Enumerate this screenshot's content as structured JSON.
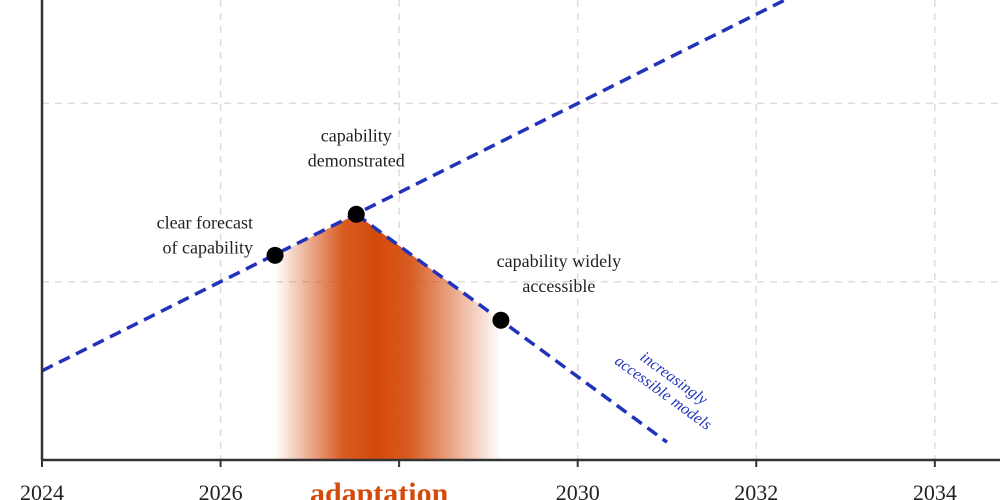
{
  "chart_data": {
    "type": "line",
    "xlim": [
      2024,
      2034.73
    ],
    "xticks": [
      2024,
      2026,
      2028,
      2030,
      2032,
      2034
    ],
    "ylim": [
      0,
      2.58
    ],
    "yticks": [
      1,
      2
    ],
    "grid": true,
    "series": [
      {
        "color": "#2233bb",
        "x": [
          2024,
          2032.32
        ],
        "values": [
          0.5,
          2.58
        ]
      },
      {
        "color": "#2233bb",
        "x": [
          2027.52,
          2031.0
        ],
        "values": [
          1.378,
          0.1
        ]
      }
    ],
    "points": [
      {
        "x": 2026.61,
        "y": 1.148,
        "label": [
          "clear forecast",
          "of capability"
        ]
      },
      {
        "x": 2027.52,
        "y": 1.378,
        "label": [
          "capability",
          "demonstrated"
        ]
      },
      {
        "x": 2029.14,
        "y": 0.784,
        "label": [
          "capability widely",
          "accessible"
        ]
      }
    ],
    "line_note": [
      "increasingly",
      "accessible models"
    ],
    "region": {
      "label": "adaptation",
      "color": "#d44a0a"
    }
  }
}
